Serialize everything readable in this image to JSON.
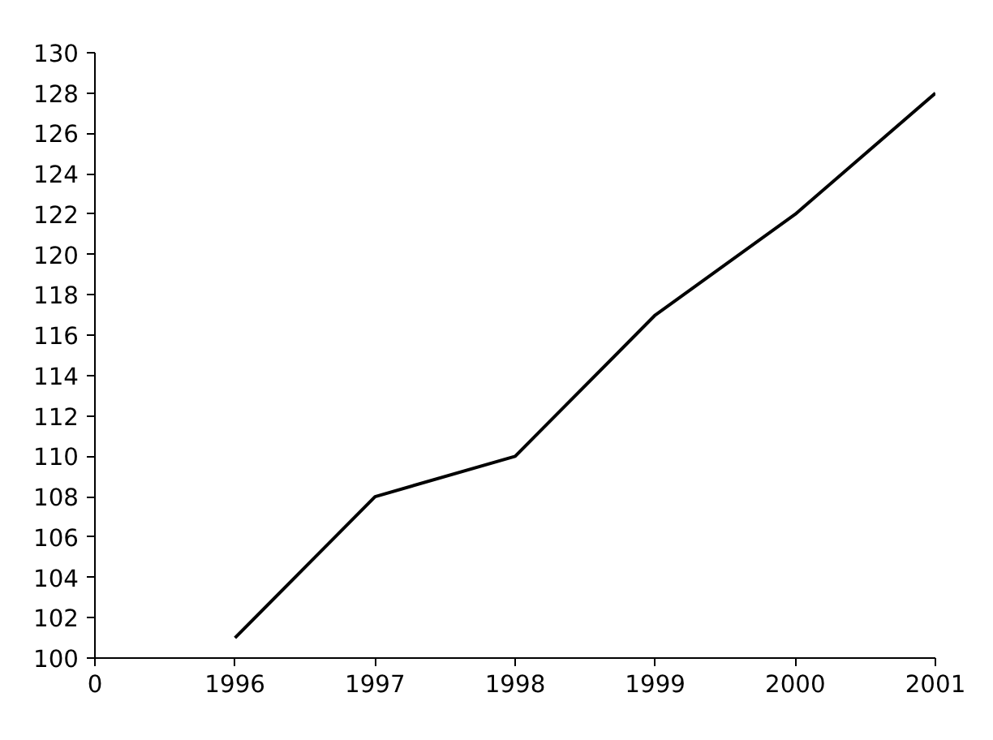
{
  "chart_data": {
    "type": "line",
    "categories": [
      "0",
      "1996",
      "1997",
      "1998",
      "1999",
      "2000",
      "2001"
    ],
    "series": [
      {
        "color": "#000000",
        "values": [
          null,
          101,
          108,
          110,
          117,
          122,
          128
        ]
      }
    ],
    "ylim": [
      100,
      130
    ],
    "yticks": [
      100,
      102,
      104,
      106,
      108,
      110,
      112,
      114,
      116,
      118,
      120,
      122,
      124,
      126,
      128,
      130
    ],
    "grid": false,
    "marker": "none",
    "line_style": "solid"
  }
}
